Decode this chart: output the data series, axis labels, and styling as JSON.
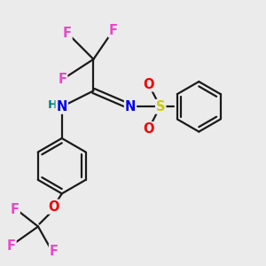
{
  "bg_color": "#ebebeb",
  "bond_color": "#1a1a1a",
  "F_color": "#ee44cc",
  "N_color": "#0000ee",
  "O_color": "#ee0000",
  "S_color": "#cccc00",
  "H_color": "#008080",
  "figsize": [
    3.0,
    3.0
  ],
  "dpi": 100,
  "xlim": [
    0,
    10
  ],
  "ylim": [
    0,
    10
  ],
  "fs": 10.5
}
